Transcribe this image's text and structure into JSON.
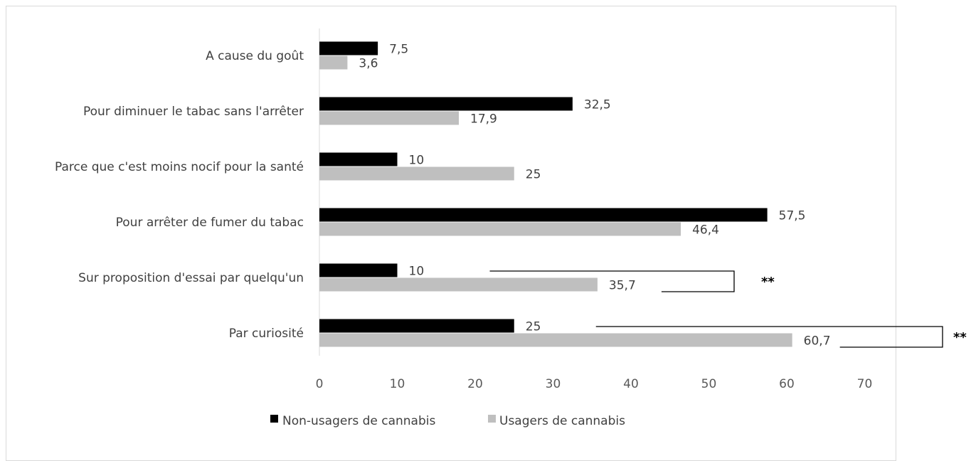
{
  "chart_data": {
    "type": "bar",
    "orientation": "horizontal",
    "categories": [
      "A cause du goût",
      "Pour diminuer le tabac sans l'arrêter",
      "Parce que c'est moins nocif pour la santé",
      "Pour arrêter de fumer du tabac",
      "Sur proposition d'essai par quelqu'un",
      "Par curiosité"
    ],
    "series": [
      {
        "name": "Non-usagers de cannabis",
        "color": "#000000",
        "values": [
          7.5,
          32.5,
          10,
          57.5,
          10,
          25
        ],
        "labels": [
          "7,5",
          "32,5",
          "10",
          "57,5",
          "10",
          "25"
        ]
      },
      {
        "name": "Usagers de cannabis",
        "color": "#bfbfbf",
        "values": [
          3.6,
          17.9,
          25,
          46.4,
          35.7,
          60.7
        ],
        "labels": [
          "3,6",
          "17,9",
          "25",
          "46,4",
          "35,7",
          "60,7"
        ]
      }
    ],
    "xlim": [
      0,
      70
    ],
    "xticks": [
      "0",
      "10",
      "20",
      "30",
      "40",
      "50",
      "60",
      "70"
    ],
    "xtick_values": [
      0,
      10,
      20,
      30,
      40,
      50,
      60,
      70
    ],
    "legend_position": "bottom",
    "annotations": [
      {
        "category": "Sur proposition d'essai par quelqu'un",
        "text": "**"
      },
      {
        "category": "Par curiosité",
        "text": "**"
      }
    ],
    "grid": false
  }
}
